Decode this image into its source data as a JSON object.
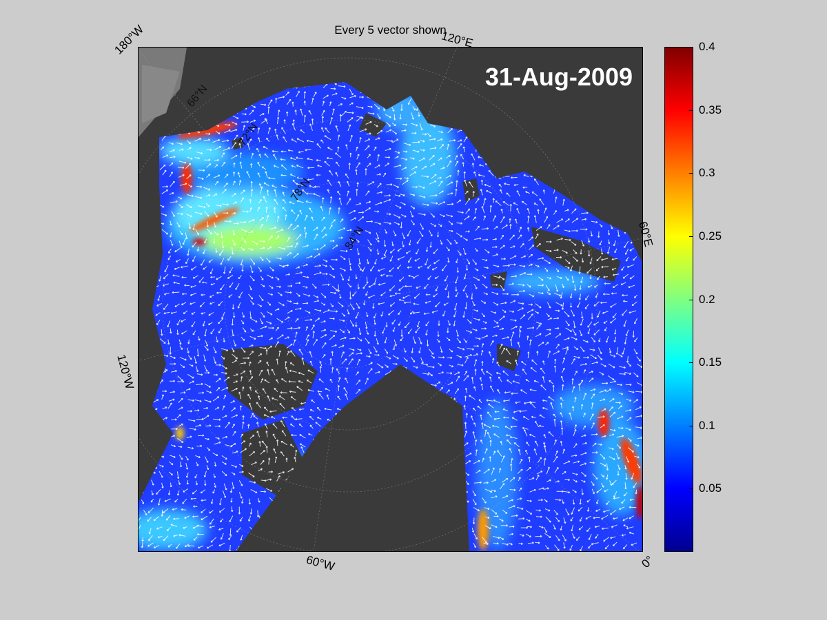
{
  "title": "Every 5 vector shown",
  "date": "31-Aug-2009",
  "longitude_labels": {
    "deg180w": "180°W",
    "deg120e": "120°E",
    "deg60e": "60°E",
    "deg120w": "120°W",
    "deg60w": "60°W",
    "deg0": "0°"
  },
  "latitude_labels": [
    "66°N",
    "72°N",
    "78°N",
    "84°N"
  ],
  "colorbar": {
    "min": 0,
    "max": 0.4,
    "ticks": [
      "0.4",
      "0.35",
      "0.3",
      "0.25",
      "0.2",
      "0.15",
      "0.1",
      "0.05"
    ],
    "tick_values": [
      0.4,
      0.35,
      0.3,
      0.25,
      0.2,
      0.15,
      0.1,
      0.05
    ],
    "colormap": "jet"
  },
  "colors": {
    "background": "#cccccc",
    "land": "#3a3a3a",
    "ocean_base": "#1f3cff",
    "vectors": "#ffffff"
  }
}
